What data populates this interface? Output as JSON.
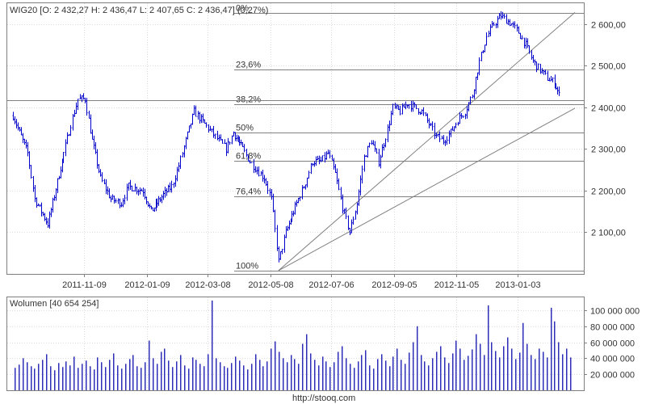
{
  "chart_data": [
    {
      "type": "line",
      "title": "WIG20 [O: 2 432,27  H: 2 436,47  L: 2 407,65  C: 2 436,47]  (0,27%)",
      "header": {
        "name": "WIG20",
        "open": "2 432,27",
        "high": "2 436,47",
        "low": "2 407,65",
        "close": "2 436,47",
        "change": "0,27%"
      },
      "x_tick_labels": [
        "2011-11-09",
        "2012-01-09",
        "2012-03-08",
        "2012-05-08",
        "2012-07-06",
        "2012-09-05",
        "2012-11-05",
        "2013-01-03"
      ],
      "y_tick_labels": [
        "2 600,00",
        "2 500,00",
        "2 400,00",
        "2 300,00",
        "2 200,00",
        "2 100,00"
      ],
      "ylim": [
        2000,
        2650
      ],
      "fib_levels": [
        {
          "label": "0%",
          "value": 2626
        },
        {
          "label": "23,6%",
          "value": 2491
        },
        {
          "label": "38,2%",
          "value": 2407
        },
        {
          "label": "50%",
          "value": 2339
        },
        {
          "label": "61,8%",
          "value": 2271
        },
        {
          "label": "76,4%",
          "value": 2187
        },
        {
          "label": "100%",
          "value": 2008
        }
      ],
      "current_level": 2418,
      "trend_lines": [
        {
          "from": [
            "2012-05-16",
            2008
          ],
          "to": [
            "2013-02-28",
            2628
          ]
        },
        {
          "from": [
            "2012-05-16",
            2008
          ],
          "to": [
            "2013-02-28",
            2398
          ]
        }
      ],
      "x": [
        "2011-09-01",
        "2011-09-15",
        "2011-09-22",
        "2011-10-05",
        "2011-10-20",
        "2011-10-27",
        "2011-11-03",
        "2011-11-10",
        "2011-11-17",
        "2011-11-25",
        "2011-12-05",
        "2011-12-15",
        "2011-12-22",
        "2012-01-05",
        "2012-01-13",
        "2012-01-25",
        "2012-02-02",
        "2012-02-09",
        "2012-02-16",
        "2012-02-24",
        "2012-03-05",
        "2012-03-12",
        "2012-03-19",
        "2012-03-26",
        "2012-04-02",
        "2012-04-11",
        "2012-04-18",
        "2012-04-25",
        "2012-05-02",
        "2012-05-09",
        "2012-05-16",
        "2012-05-23",
        "2012-06-04",
        "2012-06-11",
        "2012-06-18",
        "2012-06-26",
        "2012-07-03",
        "2012-07-10",
        "2012-07-17",
        "2012-07-24",
        "2012-07-31",
        "2012-08-07",
        "2012-08-14",
        "2012-08-21",
        "2012-08-28",
        "2012-09-04",
        "2012-09-11",
        "2012-09-18",
        "2012-09-25",
        "2012-10-02",
        "2012-10-09",
        "2012-10-16",
        "2012-10-23",
        "2012-10-30",
        "2012-11-06",
        "2012-11-13",
        "2012-11-20",
        "2012-11-27",
        "2012-12-04",
        "2012-12-11",
        "2012-12-18",
        "2012-12-28",
        "2013-01-04",
        "2013-01-11",
        "2013-01-18",
        "2013-01-25",
        "2013-02-01",
        "2013-02-08",
        "2013-02-14"
      ],
      "series": [
        {
          "name": "WIG20",
          "values": [
            2380,
            2290,
            2180,
            2120,
            2290,
            2360,
            2420,
            2420,
            2320,
            2230,
            2180,
            2170,
            2210,
            2200,
            2150,
            2190,
            2210,
            2260,
            2320,
            2390,
            2360,
            2340,
            2320,
            2300,
            2340,
            2300,
            2270,
            2250,
            2230,
            2180,
            2030,
            2100,
            2180,
            2220,
            2270,
            2270,
            2290,
            2240,
            2160,
            2100,
            2170,
            2280,
            2320,
            2270,
            2330,
            2400,
            2390,
            2410,
            2400,
            2390,
            2360,
            2330,
            2320,
            2340,
            2370,
            2390,
            2430,
            2510,
            2570,
            2600,
            2620,
            2600,
            2580,
            2550,
            2510,
            2490,
            2470,
            2460,
            2420
          ]
        }
      ]
    },
    {
      "type": "bar",
      "title": "Wolumen [40 654 254]",
      "header": {
        "name": "Wolumen",
        "value": "40 654 254"
      },
      "y_tick_labels": [
        "100 000 000",
        "80 000 000",
        "60 000 000",
        "40 000 000",
        "20 000 000"
      ],
      "ylim": [
        0,
        116000000
      ],
      "series": [
        {
          "name": "Wolumen",
          "values": [
            28,
            32,
            40,
            35,
            30,
            27,
            33,
            38,
            45,
            30,
            25,
            34,
            29,
            36,
            31,
            42,
            28,
            33,
            37,
            30,
            26,
            41,
            35,
            29,
            38,
            46,
            31,
            27,
            33,
            39,
            44,
            30,
            28,
            35,
            62,
            40,
            33,
            48,
            52,
            37,
            29,
            36,
            44,
            31,
            27,
            41,
            38,
            33,
            30,
            45,
            112,
            40,
            35,
            30,
            28,
            34,
            42,
            37,
            31,
            26,
            33,
            45,
            38,
            30,
            36,
            52,
            61,
            48,
            40,
            35,
            44,
            39,
            33,
            58,
            70,
            46,
            38,
            31,
            42,
            36,
            29,
            35,
            48,
            55,
            40,
            33,
            28,
            36,
            44,
            50,
            31,
            27,
            39,
            45,
            37,
            30,
            42,
            52,
            38,
            33,
            47,
            60,
            80,
            44,
            36,
            31,
            40,
            48,
            55,
            41,
            34,
            46,
            62,
            52,
            38,
            43,
            51,
            70,
            58,
            44,
            106,
            60,
            49,
            41,
            55,
            66,
            52,
            39,
            47,
            84,
            58,
            44,
            39,
            52,
            48,
            41,
            103,
            86,
            60,
            45,
            52,
            41
          ]
        }
      ]
    }
  ],
  "footer": {
    "url": "http://stooq.com"
  },
  "colors": {
    "price": "#0000cc",
    "volume": "#2d2db8",
    "lines": "#808080",
    "grid": "#dcdcdc"
  }
}
